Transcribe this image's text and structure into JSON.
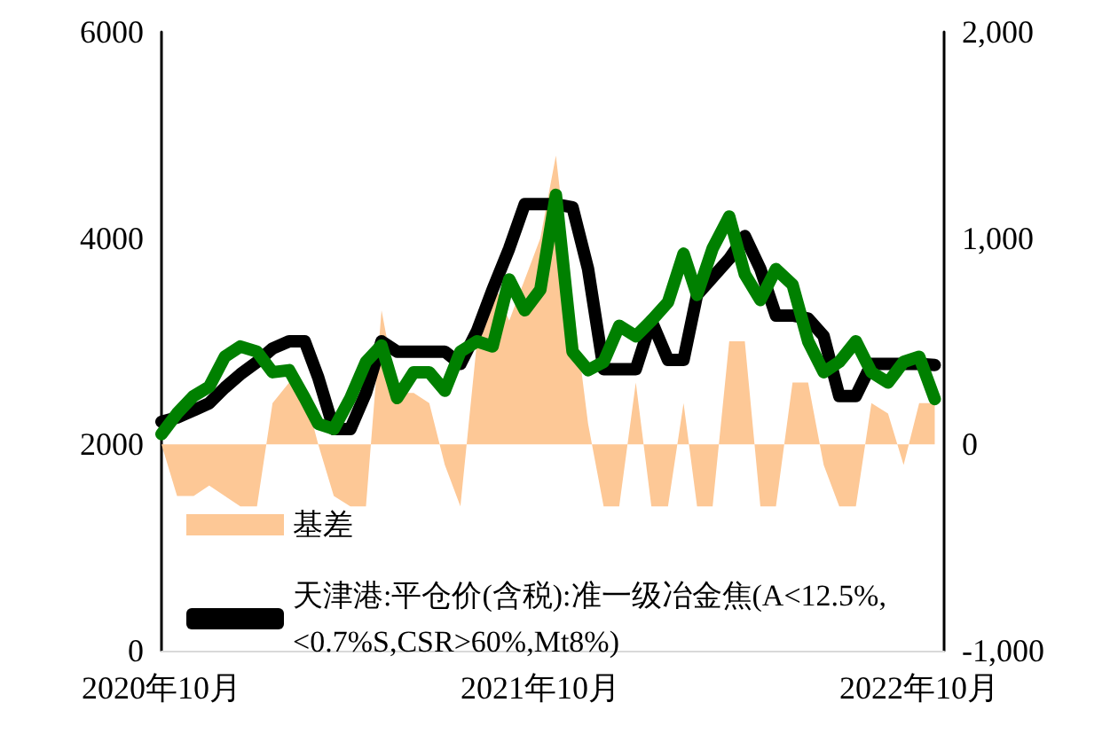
{
  "chart_data": {
    "type": "line",
    "x": [
      "2020-10-01",
      "2020-10-16",
      "2020-11-01",
      "2020-11-16",
      "2020-12-01",
      "2020-12-16",
      "2021-01-01",
      "2021-01-16",
      "2021-02-01",
      "2021-02-16",
      "2021-03-01",
      "2021-03-16",
      "2021-04-01",
      "2021-04-16",
      "2021-05-01",
      "2021-05-16",
      "2021-06-01",
      "2021-06-16",
      "2021-07-01",
      "2021-07-16",
      "2021-08-01",
      "2021-08-16",
      "2021-09-01",
      "2021-09-16",
      "2021-10-01",
      "2021-10-16",
      "2021-11-01",
      "2021-11-16",
      "2021-12-01",
      "2021-12-16",
      "2022-01-01",
      "2022-01-16",
      "2022-02-01",
      "2022-02-16",
      "2022-03-01",
      "2022-03-16",
      "2022-04-01",
      "2022-04-16",
      "2022-05-01",
      "2022-05-16",
      "2022-06-01",
      "2022-06-16",
      "2022-07-01",
      "2022-07-16",
      "2022-08-01",
      "2022-08-16",
      "2022-09-01",
      "2022-09-16",
      "2022-10-01",
      "2022-10-16"
    ],
    "series": [
      {
        "name": "基差",
        "type": "area",
        "axis": "y2",
        "color": "#fdc896",
        "values": [
          0,
          -250,
          -250,
          -200,
          -250,
          -300,
          -300,
          200,
          300,
          250,
          0,
          -250,
          -300,
          -300,
          650,
          250,
          250,
          200,
          -100,
          -300,
          500,
          800,
          600,
          800,
          1000,
          1400,
          700,
          100,
          -300,
          -300,
          300,
          -300,
          -300,
          200,
          -300,
          -300,
          500,
          500,
          -300,
          -300,
          300,
          300,
          -100,
          -300,
          -300,
          200,
          150,
          -100,
          200,
          200
        ]
      },
      {
        "name": "天津港:平仓价(含税):准一级冶金焦(A<12.5%,<0.7%S,CSR>60%,Mt8%)",
        "color": "#000000",
        "values": [
          2220,
          2260,
          2330,
          2400,
          2550,
          2680,
          2800,
          2930,
          3000,
          3000,
          2650,
          2150,
          2150,
          2500,
          3000,
          2900,
          2900,
          2900,
          2900,
          2780,
          3100,
          3500,
          3900,
          4330,
          4330,
          4330,
          4300,
          3700,
          2730,
          2730,
          2730,
          3200,
          2820,
          2820,
          3450,
          3620,
          3800,
          4020,
          3700,
          3250,
          3250,
          3220,
          3050,
          2470,
          2470,
          2780,
          2780,
          2780,
          2780,
          2770
        ]
      },
      {
        "color": "#008000",
        "values": [
          2100,
          2300,
          2470,
          2560,
          2850,
          2950,
          2900,
          2700,
          2720,
          2450,
          2200,
          2150,
          2450,
          2800,
          2960,
          2450,
          2700,
          2700,
          2520,
          2900,
          3000,
          2950,
          3600,
          3300,
          3500,
          4420,
          2900,
          2720,
          2800,
          3150,
          3050,
          3200,
          3380,
          3850,
          3450,
          3900,
          4210,
          3650,
          3400,
          3700,
          3550,
          3000,
          2700,
          2800,
          3000,
          2700,
          2600,
          2800,
          2850,
          2440
        ]
      }
    ],
    "xlim": [
      "2020-10-01",
      "2022-10-25"
    ],
    "xticks": [
      {
        "value": "2020-10-01",
        "label": "2020年10月"
      },
      {
        "value": "2021-10-01",
        "label": "2021年10月"
      },
      {
        "value": "2022-10-01",
        "label": "2022年10月"
      }
    ],
    "ylim": [
      0,
      6000
    ],
    "yticks": [
      0,
      2000,
      4000,
      6000
    ],
    "y2lim": [
      -1000,
      2000
    ],
    "y2ticks": [
      {
        "value": -1000,
        "label": "-1,000"
      },
      {
        "value": 0,
        "label": "0"
      },
      {
        "value": 1000,
        "label": "1,000"
      },
      {
        "value": 2000,
        "label": "2,000"
      }
    ],
    "legend": "bottom left",
    "grid": false,
    "line_style": "solid",
    "marker": "none"
  }
}
